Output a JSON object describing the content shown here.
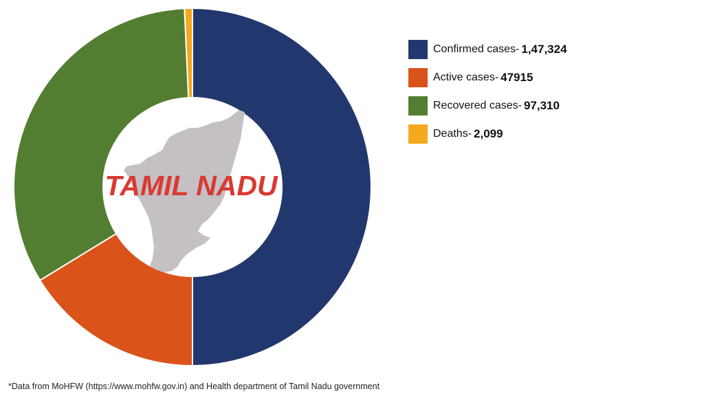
{
  "chart_data": {
    "type": "pie",
    "center_label": "TAMIL NADU",
    "slices": [
      {
        "name": "Confirmed cases",
        "label": "Confirmed cases-",
        "display_value": "1,47,324",
        "value": 147324,
        "color": "#22376d"
      },
      {
        "name": "Active cases",
        "label": "Active cases-",
        "display_value": "47915",
        "value": 47915,
        "color": "#d9531a"
      },
      {
        "name": "Recovered cases",
        "label": "Recovered cases-",
        "display_value": "97,310",
        "value": 97310,
        "color": "#537d31"
      },
      {
        "name": "Deaths",
        "label": "Deaths-",
        "display_value": "2,099",
        "value": 2099,
        "color": "#f5a81d"
      }
    ],
    "legend_position": "right"
  },
  "footnote": "*Data from MoHFW (https://www.mohfw.gov.in) and Health department of Tamil Nadu government",
  "icons": {
    "map": "tamil-nadu-map-silhouette"
  }
}
